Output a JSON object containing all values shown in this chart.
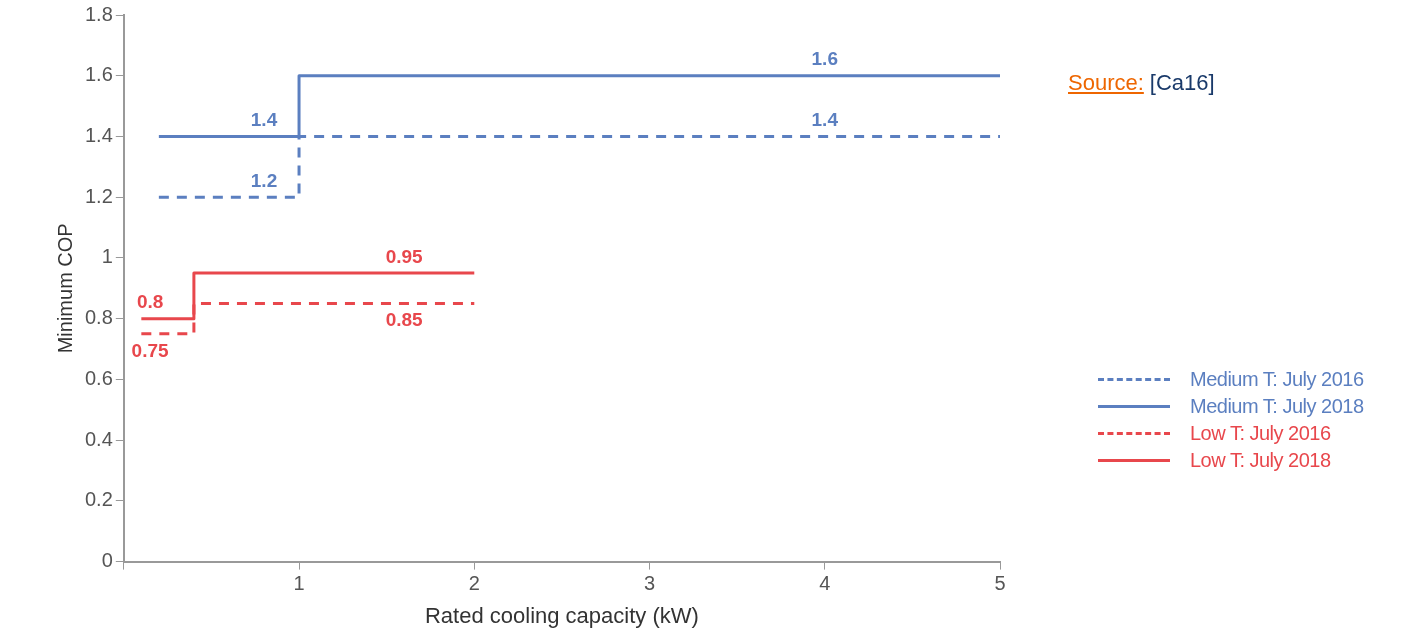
{
  "chart_data": {
    "type": "step",
    "xlabel": "Rated cooling capacity (kW)",
    "ylabel": "Minimum COP",
    "xlim": [
      0,
      5
    ],
    "xticks": [
      {
        "value": 0,
        "label": null
      },
      1,
      2,
      3,
      4,
      5
    ],
    "ylim": [
      0,
      1.8
    ],
    "yticks": [
      0,
      0.2,
      0.4,
      0.6,
      0.8,
      1,
      1.2,
      1.4,
      1.6,
      1.8
    ],
    "legend": "right",
    "series": [
      {
        "name": "Medium T: July 2016",
        "color": "#5b7fc0",
        "line_style": "dashed",
        "x": [
          0.2,
          1,
          5
        ],
        "values": [
          1.2,
          1.4,
          1.4
        ]
      },
      {
        "name": "Medium T: July 2018",
        "color": "#5b7fc0",
        "line_style": "solid",
        "x": [
          0.2,
          1,
          5
        ],
        "values": [
          1.4,
          1.6,
          1.6
        ]
      },
      {
        "name": "Low T: July 2016",
        "color": "#e8474c",
        "line_style": "dashed",
        "x": [
          0.1,
          0.4,
          2
        ],
        "values": [
          0.75,
          0.85,
          0.85
        ]
      },
      {
        "name": "Low T: July 2018",
        "color": "#e8474c",
        "line_style": "solid",
        "x": [
          0.1,
          0.4,
          2
        ],
        "values": [
          0.8,
          0.95,
          0.95
        ]
      }
    ],
    "annotations": [
      {
        "text": "1.4",
        "x": 0.8,
        "y": 1.4
      },
      {
        "text": "1.2",
        "x": 0.8,
        "y": 1.2
      },
      {
        "text": "1.6",
        "x": 4,
        "y": 1.6
      },
      {
        "text": "1.4",
        "x": 4,
        "y": 1.4
      },
      {
        "text": "0.95",
        "x": 1.6,
        "y": 0.95
      },
      {
        "text": "0.85",
        "x": 1.6,
        "y": 0.85
      },
      {
        "text": "0.8",
        "x": 0.15,
        "y": 0.8
      },
      {
        "text": "0.75",
        "x": 0.15,
        "y": 0.75
      },
      "Source:",
      "[Ca16]"
    ]
  }
}
